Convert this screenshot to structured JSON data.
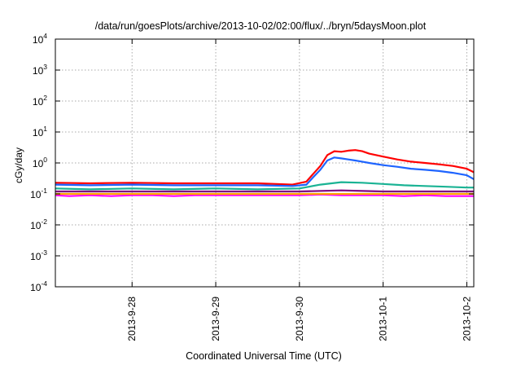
{
  "chart_data": {
    "type": "line",
    "title": "/data/run/goesPlots/archive/2013-10-02/02:00/flux/../bryn/5daysMoon.plot",
    "xlabel": "Coordinated Universal Time (UTC)",
    "ylabel": "cGy/day",
    "y_scale": "log",
    "ylim": [
      0.0001,
      10000
    ],
    "y_ticks": [
      {
        "base": "10",
        "exp": "-4"
      },
      {
        "base": "10",
        "exp": "-3"
      },
      {
        "base": "10",
        "exp": "-2"
      },
      {
        "base": "10",
        "exp": "-1"
      },
      {
        "base": "10",
        "exp": "0"
      },
      {
        "base": "10",
        "exp": "1"
      },
      {
        "base": "10",
        "exp": "2"
      },
      {
        "base": "10",
        "exp": "3"
      },
      {
        "base": "10",
        "exp": "4"
      }
    ],
    "xlim": [
      "2013-09-27 02:00",
      "2013-10-02 02:00"
    ],
    "x_ticks": [
      "2013-9-28",
      "2013-9-29",
      "2013-9-30",
      "2013-10-1",
      "2013-10-2"
    ],
    "x_tick_dates": [
      "2013-09-28 00:00",
      "2013-09-29 00:00",
      "2013-09-30 00:00",
      "2013-10-01 00:00",
      "2013-10-02 00:00"
    ],
    "grid": true,
    "legend": "none",
    "series": [
      {
        "color": "#ff00ff",
        "x": [
          "2013-09-27 02:00",
          "2013-09-27 06:00",
          "2013-09-27 12:00",
          "2013-09-27 18:00",
          "2013-09-28 00:00",
          "2013-09-28 06:00",
          "2013-09-28 12:00",
          "2013-09-28 18:00",
          "2013-09-29 00:00",
          "2013-09-29 06:00",
          "2013-09-29 12:00",
          "2013-09-29 18:00",
          "2013-09-30 00:00",
          "2013-09-30 06:00",
          "2013-09-30 12:00",
          "2013-09-30 18:00",
          "2013-10-01 00:00",
          "2013-10-01 06:00",
          "2013-10-01 12:00",
          "2013-10-01 18:00",
          "2013-10-02 00:00",
          "2013-10-02 02:00"
        ],
        "y": [
          0.09,
          0.085,
          0.09,
          0.085,
          0.09,
          0.09,
          0.085,
          0.09,
          0.09,
          0.09,
          0.09,
          0.09,
          0.09,
          0.095,
          0.09,
          0.09,
          0.09,
          0.085,
          0.09,
          0.085,
          0.085,
          0.085
        ]
      },
      {
        "color": "#ffa500",
        "x": [
          "2013-09-27 02:00",
          "2013-09-27 12:00",
          "2013-09-28 00:00",
          "2013-09-28 12:00",
          "2013-09-29 00:00",
          "2013-09-29 12:00",
          "2013-09-30 00:00",
          "2013-09-30 12:00",
          "2013-10-01 00:00",
          "2013-10-01 12:00",
          "2013-10-02 00:00",
          "2013-10-02 02:00"
        ],
        "y": [
          0.1,
          0.1,
          0.1,
          0.1,
          0.1,
          0.1,
          0.1,
          0.1,
          0.1,
          0.1,
          0.1,
          0.1
        ]
      },
      {
        "color": "#1ab394",
        "x": [
          "2013-09-27 02:00",
          "2013-09-27 12:00",
          "2013-09-28 00:00",
          "2013-09-28 12:00",
          "2013-09-29 00:00",
          "2013-09-29 12:00",
          "2013-09-30 00:00",
          "2013-09-30 06:00",
          "2013-09-30 12:00",
          "2013-09-30 18:00",
          "2013-10-01 00:00",
          "2013-10-01 06:00",
          "2013-10-01 12:00",
          "2013-10-01 18:00",
          "2013-10-02 00:00",
          "2013-10-02 02:00"
        ],
        "y": [
          0.15,
          0.14,
          0.15,
          0.14,
          0.15,
          0.14,
          0.15,
          0.2,
          0.24,
          0.23,
          0.21,
          0.19,
          0.18,
          0.17,
          0.16,
          0.16
        ]
      },
      {
        "color": "#800080",
        "x": [
          "2013-09-27 02:00",
          "2013-09-27 12:00",
          "2013-09-28 00:00",
          "2013-09-28 12:00",
          "2013-09-29 00:00",
          "2013-09-29 12:00",
          "2013-09-30 00:00",
          "2013-09-30 12:00",
          "2013-10-01 00:00",
          "2013-10-01 12:00",
          "2013-10-02 00:00",
          "2013-10-02 02:00"
        ],
        "y": [
          0.12,
          0.12,
          0.12,
          0.12,
          0.12,
          0.12,
          0.12,
          0.13,
          0.12,
          0.12,
          0.12,
          0.12
        ]
      },
      {
        "color": "#ff0000",
        "x": [
          "2013-09-27 02:00",
          "2013-09-27 12:00",
          "2013-09-28 00:00",
          "2013-09-28 12:00",
          "2013-09-29 00:00",
          "2013-09-29 12:00",
          "2013-09-29 22:00",
          "2013-09-30 02:00",
          "2013-09-30 04:00",
          "2013-09-30 06:00",
          "2013-09-30 08:00",
          "2013-09-30 10:00",
          "2013-09-30 12:00",
          "2013-09-30 14:00",
          "2013-09-30 16:00",
          "2013-09-30 18:00",
          "2013-09-30 20:00",
          "2013-10-01 00:00",
          "2013-10-01 04:00",
          "2013-10-01 08:00",
          "2013-10-01 12:00",
          "2013-10-01 16:00",
          "2013-10-01 20:00",
          "2013-10-02 00:00",
          "2013-10-02 02:00"
        ],
        "y": [
          0.23,
          0.22,
          0.23,
          0.22,
          0.22,
          0.22,
          0.2,
          0.25,
          0.45,
          0.8,
          1.8,
          2.4,
          2.3,
          2.5,
          2.6,
          2.4,
          2.0,
          1.6,
          1.3,
          1.1,
          1.0,
          0.9,
          0.8,
          0.65,
          0.5
        ]
      },
      {
        "color": "#1e64ff",
        "x": [
          "2013-09-27 02:00",
          "2013-09-27 12:00",
          "2013-09-28 00:00",
          "2013-09-28 12:00",
          "2013-09-29 00:00",
          "2013-09-29 12:00",
          "2013-09-29 22:00",
          "2013-09-30 02:00",
          "2013-09-30 04:00",
          "2013-09-30 06:00",
          "2013-09-30 08:00",
          "2013-09-30 10:00",
          "2013-09-30 12:00",
          "2013-09-30 14:00",
          "2013-09-30 16:00",
          "2013-09-30 18:00",
          "2013-09-30 20:00",
          "2013-10-01 00:00",
          "2013-10-01 04:00",
          "2013-10-01 08:00",
          "2013-10-01 12:00",
          "2013-10-01 16:00",
          "2013-10-01 20:00",
          "2013-10-02 00:00",
          "2013-10-02 02:00"
        ],
        "y": [
          0.2,
          0.19,
          0.2,
          0.19,
          0.19,
          0.19,
          0.18,
          0.2,
          0.35,
          0.6,
          1.2,
          1.5,
          1.4,
          1.3,
          1.2,
          1.1,
          1.0,
          0.85,
          0.75,
          0.65,
          0.6,
          0.55,
          0.48,
          0.4,
          0.3
        ]
      }
    ]
  }
}
